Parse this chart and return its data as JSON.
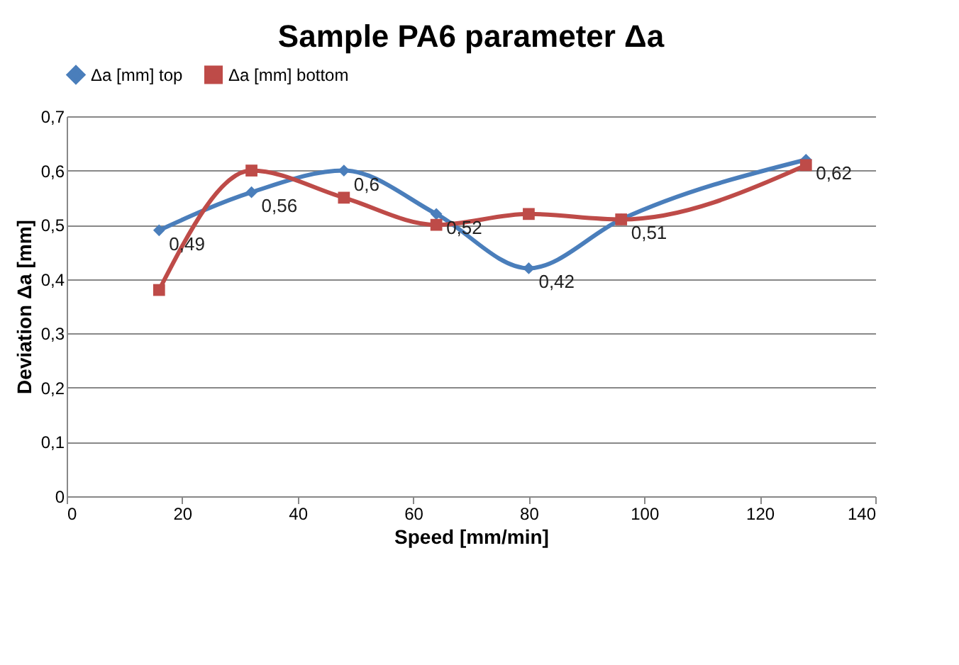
{
  "chart_data": {
    "type": "line",
    "title": "Sample PA6 parameter Δa",
    "xlabel": "Speed [mm/min]",
    "ylabel": "Deviation Δa [mm]",
    "x": [
      16,
      32,
      48,
      64,
      80,
      96,
      128
    ],
    "series": [
      {
        "name": "Δa [mm] top",
        "color": "#4a7ebb",
        "marker": "diamond",
        "values": [
          0.49,
          0.56,
          0.6,
          0.52,
          0.42,
          0.51,
          0.62
        ],
        "value_labels": [
          "0,49",
          "0,56",
          "0,6",
          "0,52",
          "0,42",
          "0,51",
          "0,62"
        ]
      },
      {
        "name": "Δa [mm] bottom",
        "color": "#be4b48",
        "marker": "square",
        "values": [
          0.38,
          0.6,
          0.55,
          0.5,
          0.52,
          0.51,
          0.61
        ]
      }
    ],
    "xlim": [
      0,
      140
    ],
    "xticks": [
      0,
      20,
      40,
      60,
      80,
      100,
      120,
      140
    ],
    "ylim": [
      0,
      0.7
    ],
    "yticks": [
      0,
      {
        "value": 0.1,
        "label": "0,1"
      },
      {
        "value": 0.2,
        "label": "0,2"
      },
      {
        "value": 0.3,
        "label": "0,3"
      },
      {
        "value": 0.4,
        "label": "0,4"
      },
      {
        "value": 0.5,
        "label": "0,5"
      },
      {
        "value": 0.6,
        "label": "0,6"
      },
      {
        "value": 0.7,
        "label": "0,7"
      }
    ],
    "grid": "y",
    "legend": "top",
    "line_style": "solid"
  }
}
